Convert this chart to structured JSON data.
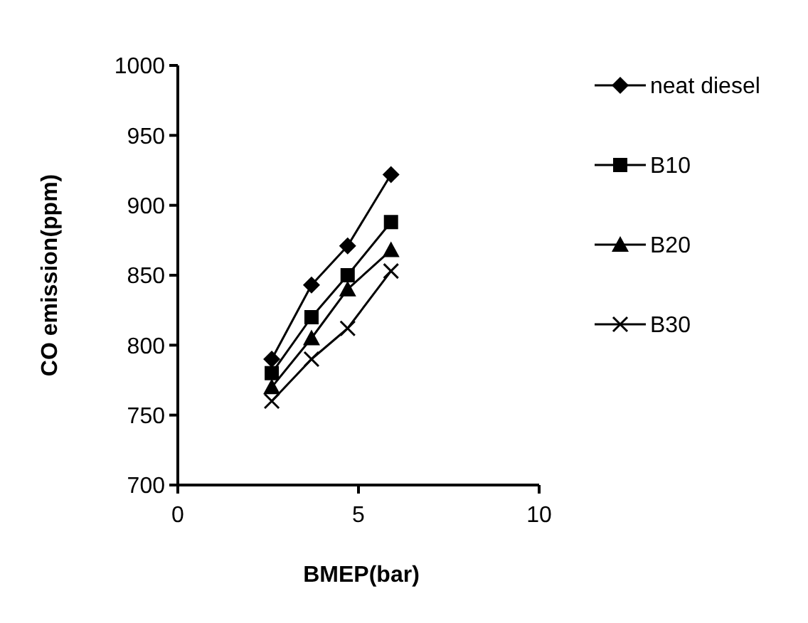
{
  "chart_data": {
    "type": "line",
    "xlabel": "BMEP(bar)",
    "ylabel": "CO emission(ppm)",
    "x": [
      2.6,
      3.7,
      4.7,
      5.9
    ],
    "xlim": [
      0,
      10
    ],
    "xticks": [
      0,
      5,
      10
    ],
    "ylim": [
      700,
      1000
    ],
    "yticks": [
      700,
      750,
      800,
      850,
      900,
      950,
      1000
    ],
    "legend": "right",
    "grid": false,
    "series": [
      {
        "name": "neat diesel",
        "color": "#000000",
        "marker": "diamond",
        "values": [
          790,
          843,
          871,
          922
        ]
      },
      {
        "name": "B10",
        "color": "#000000",
        "marker": "square",
        "values": [
          780,
          820,
          850,
          888
        ]
      },
      {
        "name": "B20",
        "color": "#000000",
        "marker": "triangle",
        "values": [
          770,
          805,
          840,
          868
        ]
      },
      {
        "name": "B30",
        "color": "#000000",
        "marker": "cross",
        "values": [
          760,
          790,
          812,
          853
        ]
      }
    ]
  }
}
